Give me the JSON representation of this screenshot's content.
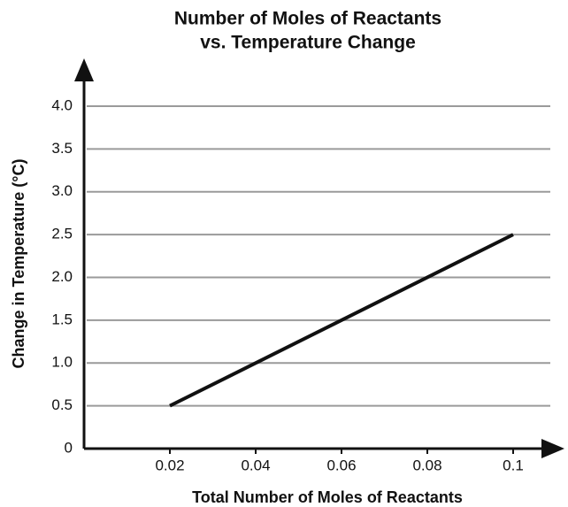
{
  "chart_data": {
    "type": "line",
    "title": [
      "Number of Moles of Reactants",
      "vs. Temperature Change"
    ],
    "x_label": "Total Number of Moles of Reactants",
    "y_label": "Change in Temperature (°C)",
    "x": [
      0.02,
      0.1
    ],
    "series": [
      {
        "name": "Temperature Change",
        "color": "#111111",
        "values": [
          0.5,
          2.5
        ]
      }
    ],
    "xlim": [
      0,
      0.1
    ],
    "xticks": [
      0,
      0.02,
      0.04,
      0.06,
      0.08,
      0.1
    ],
    "ylim": [
      0,
      4
    ],
    "yticks": [
      0,
      0.5,
      {
        "value": 1,
        "label": "1.0"
      },
      1.5,
      {
        "value": 2,
        "label": "2.0"
      },
      2.5,
      {
        "value": 3,
        "label": "3.0"
      },
      3.5,
      {
        "value": 4,
        "label": "4.0"
      }
    ],
    "grid": true
  }
}
